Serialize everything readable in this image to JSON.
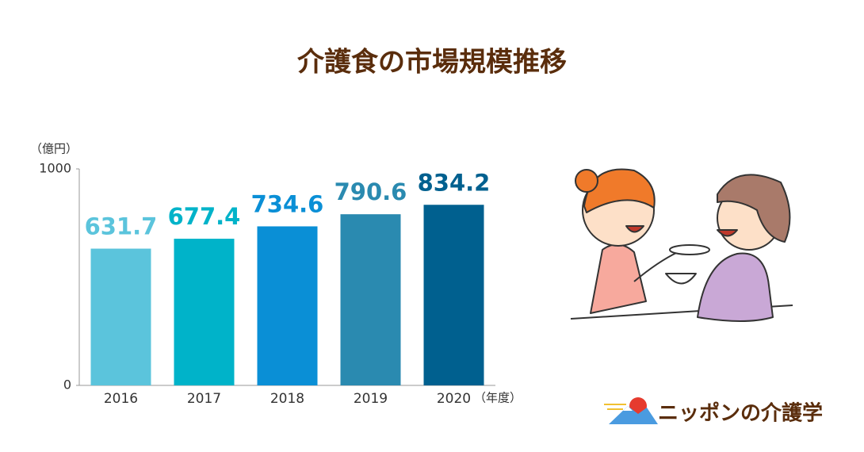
{
  "chart_data": {
    "type": "bar",
    "title": "介護食の市場規模推移",
    "y_label": "（億円）",
    "x_label": "（年度）",
    "categories": [
      "2016",
      "2017",
      "2018",
      "2019",
      "2020"
    ],
    "values": [
      631.7,
      677.4,
      734.6,
      790.6,
      834.2
    ],
    "colors": [
      "#5bc4dc",
      "#00b3c9",
      "#0a8fd6",
      "#2a8ab0",
      "#00608f"
    ],
    "ylim": [
      0,
      1000
    ],
    "yticks": [
      0,
      1000
    ],
    "grid": false
  },
  "logo": {
    "text": "ニッポンの介護学"
  }
}
